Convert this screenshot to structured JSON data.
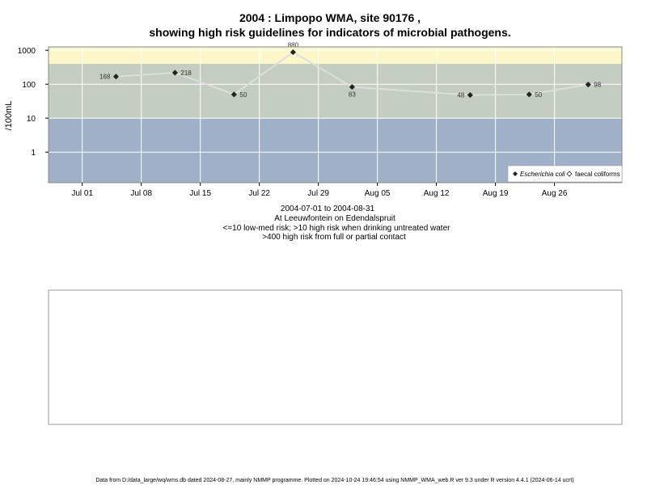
{
  "title": "2004 : Limpopo WMA, site 90176 ,",
  "subtitle": "showing high risk guidelines for indicators of microbial pathogens.",
  "ylabel": "/100mL",
  "captions": [
    "2004-07-01 to 2004-08-31",
    "At Leeuwfontein on Edendalspruit",
    "<=10 low-med risk; >10 high risk when drinking untreated water",
    ">400 high risk from full or partial contact"
  ],
  "footer": "Data from D:/data_large/wq/wms.db dated 2024-08-27, mainly NMMP programme. Plotted on 2024-10-24 19:46:54 using NMMP_WMA_web.R ver 9.3 under R version 4.4.1 (2024-06-14 ucrt)",
  "colors": {
    "band_low": "#a0b0c8",
    "band_mid": "#c4cec0",
    "band_high": "#fcf6c8",
    "line": "#dddddd",
    "marker": "#222222",
    "grid": "#ffffff"
  },
  "chart_data": {
    "type": "line",
    "x_axis_type": "date",
    "y_scale": "log",
    "xlim": [
      "2004-06-27",
      "2004-09-03"
    ],
    "ylim_log10": [
      -0.9,
      3.1
    ],
    "x_ticks": [
      {
        "label": "Jul 01",
        "date": "2004-07-01"
      },
      {
        "label": "Jul 08",
        "date": "2004-07-08"
      },
      {
        "label": "Jul 15",
        "date": "2004-07-15"
      },
      {
        "label": "Jul 22",
        "date": "2004-07-22"
      },
      {
        "label": "Jul 29",
        "date": "2004-07-29"
      },
      {
        "label": "Aug 05",
        "date": "2004-08-05"
      },
      {
        "label": "Aug 12",
        "date": "2004-08-12"
      },
      {
        "label": "Aug 19",
        "date": "2004-08-19"
      },
      {
        "label": "Aug 26",
        "date": "2004-08-26"
      }
    ],
    "y_ticks": [
      {
        "label": "1",
        "value": 1
      },
      {
        "label": "10",
        "value": 10
      },
      {
        "label": "100",
        "value": 100
      },
      {
        "label": "1000",
        "value": 1000
      }
    ],
    "bands": [
      {
        "name": "low-med risk",
        "from": 0.125,
        "to": 10,
        "color": "#a0b0c8"
      },
      {
        "name": "high risk when drinking untreated water",
        "from": 10,
        "to": 400,
        "color": "#c4cec0"
      },
      {
        "name": "high risk from full or partial contact",
        "from": 400,
        "to": 1260,
        "color": "#fcf6c8"
      }
    ],
    "series": [
      {
        "name": "Escherichia coli",
        "marker": "diamond",
        "points": [
          {
            "date": "2004-07-05",
            "y": 168,
            "label": "168",
            "label_side": "left"
          },
          {
            "date": "2004-07-12",
            "y": 218,
            "label": "218",
            "label_side": "right"
          },
          {
            "date": "2004-07-19",
            "y": 50,
            "label": "50",
            "label_side": "right"
          },
          {
            "date": "2004-07-26",
            "y": 880,
            "label": "880",
            "label_side": "above"
          },
          {
            "date": "2004-08-02",
            "y": 83,
            "label": "83",
            "label_side": "below"
          },
          {
            "date": "2004-08-16",
            "y": 48,
            "label": "48",
            "label_side": "left"
          },
          {
            "date": "2004-08-23",
            "y": 50,
            "label": "50",
            "label_side": "right"
          },
          {
            "date": "2004-08-30",
            "y": 98,
            "label": "98",
            "label_side": "right"
          }
        ]
      },
      {
        "name": "faecal coliforms",
        "marker": "open-diamond",
        "points": []
      }
    ],
    "legend_position": "bottom-right",
    "grid": true
  },
  "lower_panel": {
    "chart_data": {
      "type": "line",
      "series": []
    }
  }
}
